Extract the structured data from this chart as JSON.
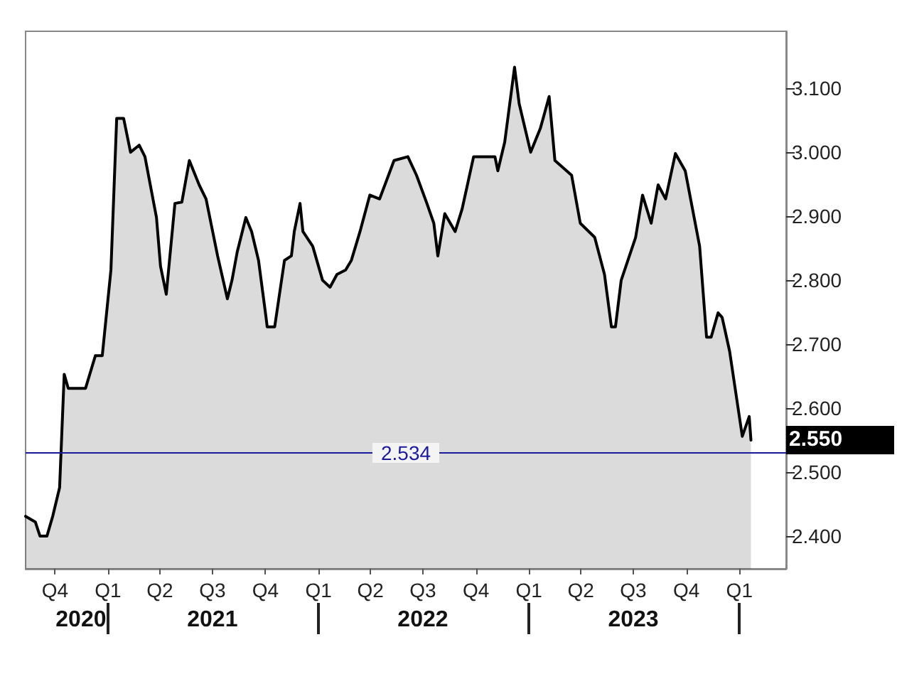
{
  "chart_data": {
    "type": "area",
    "series": [
      {
        "color": "#000000",
        "x": [
          "2020-08-11",
          "2020-08-28",
          "2020-09-05",
          "2020-09-17",
          "2020-09-27",
          "2020-10-09",
          "2020-10-17",
          "2020-10-24",
          "2020-11-23",
          "2020-12-10",
          "2020-12-22",
          "2021-01-06",
          "2021-01-16",
          "2021-01-28",
          "2021-02-09",
          "2021-02-24",
          "2021-03-06",
          "2021-03-26",
          "2021-04-02",
          "2021-04-12",
          "2021-04-27",
          "2021-05-09",
          "2021-05-22",
          "2021-06-08",
          "2021-06-20",
          "2021-07-10",
          "2021-07-27",
          "2021-08-04",
          "2021-08-13",
          "2021-08-28",
          "2021-09-07",
          "2021-09-19",
          "2021-10-02",
          "2021-10-04",
          "2021-10-17",
          "2021-11-03",
          "2021-11-15",
          "2021-11-20",
          "2021-11-30",
          "2021-12-05",
          "2021-12-22",
          "2022-01-08",
          "2022-01-21",
          "2022-02-02",
          "2022-02-17",
          "2022-02-27",
          "2022-03-14",
          "2022-03-31",
          "2022-04-17",
          "2022-05-12",
          "2022-06-05",
          "2022-06-20",
          "2022-07-08",
          "2022-07-20",
          "2022-07-27",
          "2022-08-08",
          "2022-08-26",
          "2022-09-07",
          "2022-09-27",
          "2022-11-03",
          "2022-11-08",
          "2022-11-20",
          "2022-12-07",
          "2022-12-15",
          "2023-01-04",
          "2023-01-21",
          "2023-02-05",
          "2023-02-15",
          "2023-03-16",
          "2023-03-31",
          "2023-04-25",
          "2023-05-12",
          "2023-05-24",
          "2023-05-31",
          "2023-06-10",
          "2023-07-05",
          "2023-07-17",
          "2023-08-01",
          "2023-08-13",
          "2023-08-26",
          "2023-09-12",
          "2023-09-29",
          "2023-10-24",
          "2023-11-05",
          "2023-11-13",
          "2023-11-25",
          "2023-12-02",
          "2023-12-15",
          "2024-01-06",
          "2024-01-18",
          "2024-01-21"
        ],
        "values": [
          2.431,
          2.422,
          2.4,
          2.4,
          2.431,
          2.476,
          2.653,
          2.631,
          2.631,
          2.682,
          2.682,
          2.816,
          3.053,
          3.053,
          3.0,
          3.011,
          2.993,
          2.898,
          2.822,
          2.778,
          2.92,
          2.922,
          2.987,
          2.949,
          2.927,
          2.838,
          2.771,
          2.8,
          2.844,
          2.898,
          2.876,
          2.831,
          2.742,
          2.727,
          2.727,
          2.831,
          2.838,
          2.876,
          2.92,
          2.876,
          2.853,
          2.8,
          2.789,
          2.809,
          2.816,
          2.831,
          2.876,
          2.933,
          2.927,
          2.987,
          2.993,
          2.964,
          2.92,
          2.889,
          2.838,
          2.904,
          2.876,
          2.911,
          2.993,
          2.993,
          2.971,
          3.016,
          3.133,
          3.076,
          3.0,
          3.038,
          3.087,
          2.987,
          2.964,
          2.889,
          2.867,
          2.809,
          2.727,
          2.727,
          2.8,
          2.867,
          2.933,
          2.889,
          2.949,
          2.927,
          2.998,
          2.971,
          2.853,
          2.711,
          2.711,
          2.749,
          2.742,
          2.689,
          2.556,
          2.587,
          2.55
        ]
      }
    ],
    "xlim": [
      "2020-08-11",
      "2024-03-22"
    ],
    "xticks": [
      {
        "value": "2020-10-01",
        "label": "Q4"
      },
      {
        "value": "2021-01-01",
        "label": "Q1"
      },
      {
        "value": "2021-04-01",
        "label": "Q2"
      },
      {
        "value": "2021-07-01",
        "label": "Q3"
      },
      {
        "value": "2021-10-01",
        "label": "Q4"
      },
      {
        "value": "2022-01-01",
        "label": "Q1"
      },
      {
        "value": "2022-04-01",
        "label": "Q2"
      },
      {
        "value": "2022-07-01",
        "label": "Q3"
      },
      {
        "value": "2022-10-01",
        "label": "Q4"
      },
      {
        "value": "2023-01-01",
        "label": "Q1"
      },
      {
        "value": "2023-04-01",
        "label": "Q2"
      },
      {
        "value": "2023-07-01",
        "label": "Q3"
      },
      {
        "value": "2023-10-01",
        "label": "Q4"
      },
      {
        "value": "2024-01-01",
        "label": "Q1"
      }
    ],
    "x2lim": [
      "2020-08-11",
      "2024-03-22"
    ],
    "x2ticks": [
      {
        "value": "2020-11-15",
        "label": "2020"
      },
      {
        "value": "2021-01-01",
        "label": null
      },
      {
        "value": "2021-07-01",
        "label": "2021"
      },
      {
        "value": "2022-01-01",
        "label": null
      },
      {
        "value": "2022-07-01",
        "label": "2022"
      },
      {
        "value": "2023-01-01",
        "label": null
      },
      {
        "value": "2023-07-01",
        "label": "2023"
      },
      {
        "value": "2024-01-01",
        "label": null
      }
    ],
    "ylim": [
      2.349,
      3.189
    ],
    "yticks": [
      {
        "value": 2.4,
        "label": "2.400"
      },
      {
        "value": 2.5,
        "label": "2.500"
      },
      {
        "value": 2.6,
        "label": "2.600"
      },
      {
        "value": 2.7,
        "label": "2.700"
      },
      {
        "value": 2.8,
        "label": "2.800"
      },
      {
        "value": 2.9,
        "label": "2.900"
      },
      {
        "value": 3.0,
        "label": "3.000"
      },
      {
        "value": 3.1,
        "label": "3.100"
      }
    ],
    "ref_lines": [
      {
        "axis": "y",
        "value": 2.534,
        "label": "2.534",
        "color": "#1a1a9c"
      }
    ],
    "annotations": [
      "2.550"
    ],
    "grid": false,
    "marker": "none",
    "line_style": "solid"
  }
}
